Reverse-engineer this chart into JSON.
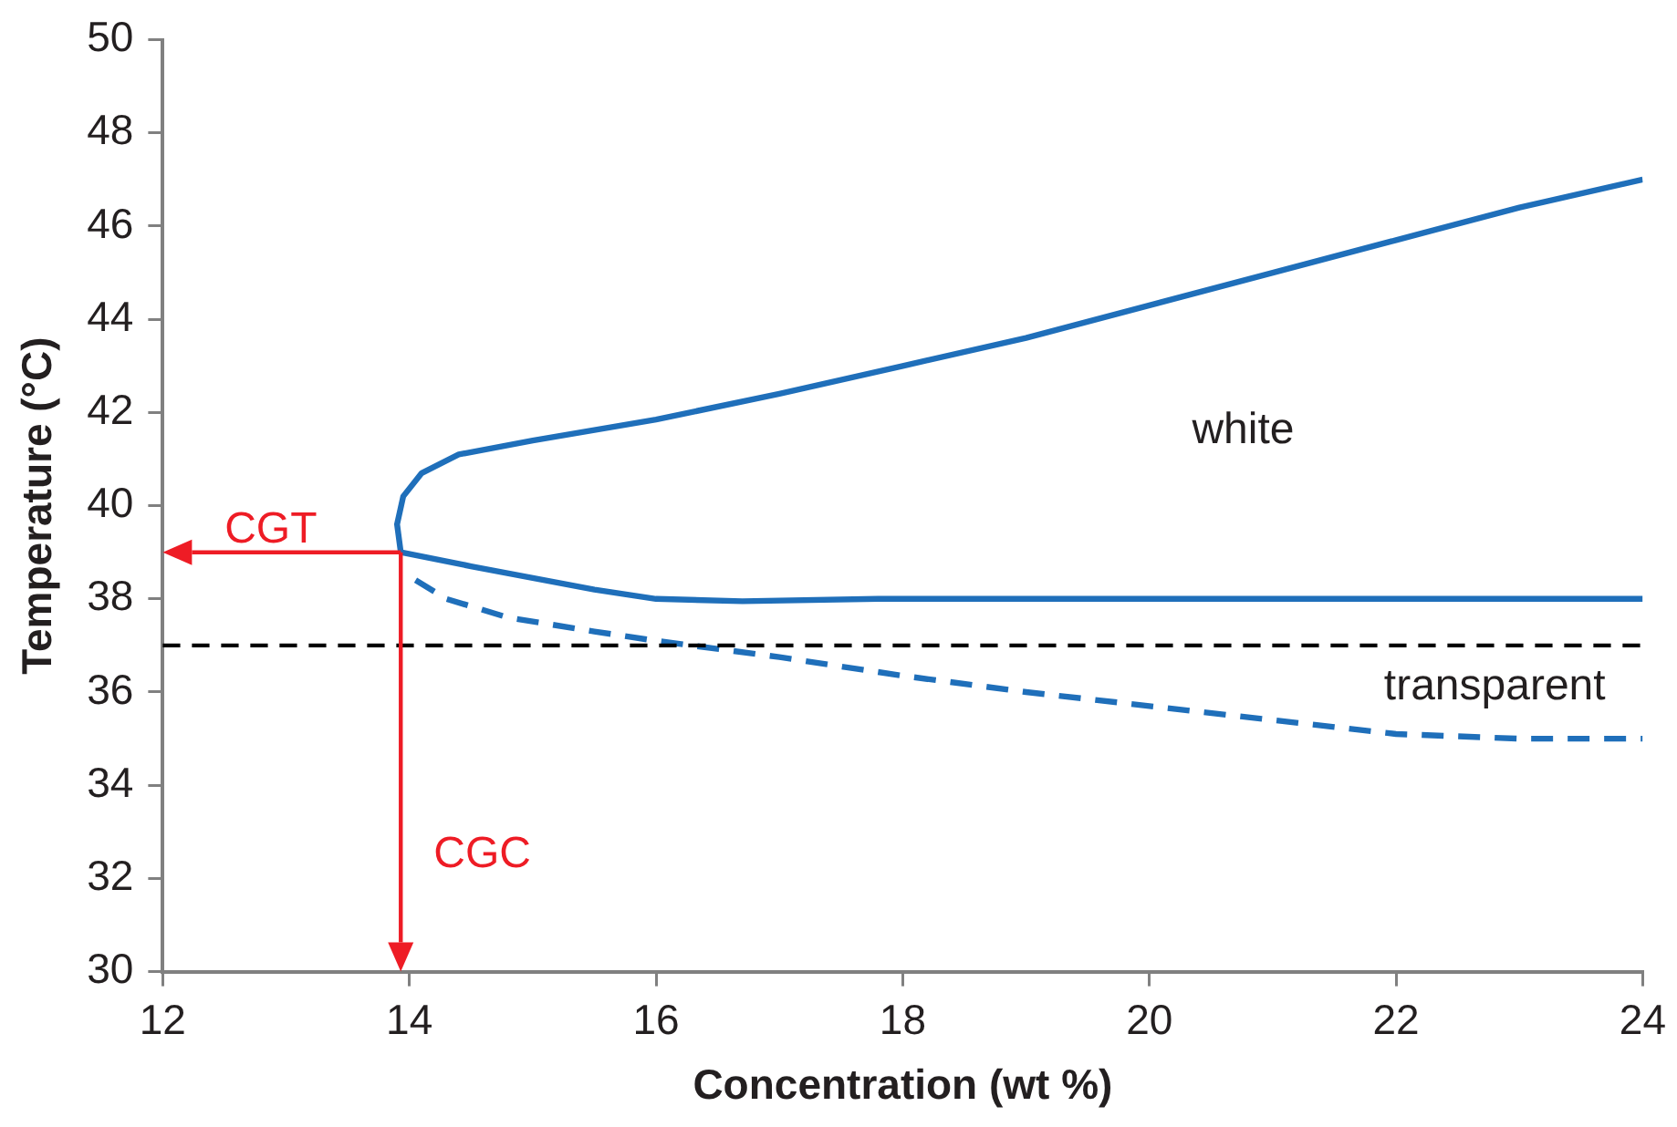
{
  "chart_data": {
    "type": "line",
    "xlabel": "Concentration (wt %)",
    "ylabel": "Temperature (°C)",
    "xlim": [
      12,
      24
    ],
    "xticks": [
      12,
      14,
      16,
      18,
      20,
      22,
      24
    ],
    "ylim": [
      30,
      50
    ],
    "yticks": [
      30,
      32,
      34,
      36,
      38,
      40,
      42,
      44,
      46,
      48,
      50
    ],
    "grid": false,
    "legend": false,
    "marker": "none",
    "series": [
      {
        "color": "#1f6fba",
        "line_style": "solid",
        "x": [
          13.93,
          13.9,
          13.95,
          14.1,
          14.4,
          15,
          16,
          17,
          18,
          19,
          20,
          21,
          22,
          23,
          24
        ],
        "values": [
          39.0,
          39.6,
          40.2,
          40.7,
          41.1,
          41.4,
          41.85,
          42.4,
          43.0,
          43.6,
          44.3,
          45.0,
          45.7,
          46.4,
          47.0
        ]
      },
      {
        "color": "#1f6fba",
        "line_style": "solid",
        "x": [
          13.93,
          14.5,
          15,
          15.5,
          16,
          16.7,
          17.8,
          24
        ],
        "values": [
          39.0,
          38.7,
          38.45,
          38.2,
          38.0,
          37.95,
          38.0,
          38.0
        ]
      },
      {
        "color": "#1f6fba",
        "line_style": "dashed",
        "x": [
          14.05,
          14.3,
          14.8,
          15.5,
          16,
          17,
          18,
          19,
          20,
          21,
          22,
          23,
          24
        ],
        "values": [
          38.4,
          38.0,
          37.6,
          37.3,
          37.1,
          36.75,
          36.35,
          36.0,
          35.7,
          35.4,
          35.1,
          35.0,
          35.0
        ]
      }
    ],
    "ref_lines": [
      {
        "axis": "y",
        "value": 37,
        "color": "#000000",
        "line_style": "dashed"
      }
    ],
    "annotations": [
      {
        "text": "CGT",
        "x": 13.93,
        "y": 39
      },
      "CGC",
      "white",
      "transparent"
    ]
  }
}
